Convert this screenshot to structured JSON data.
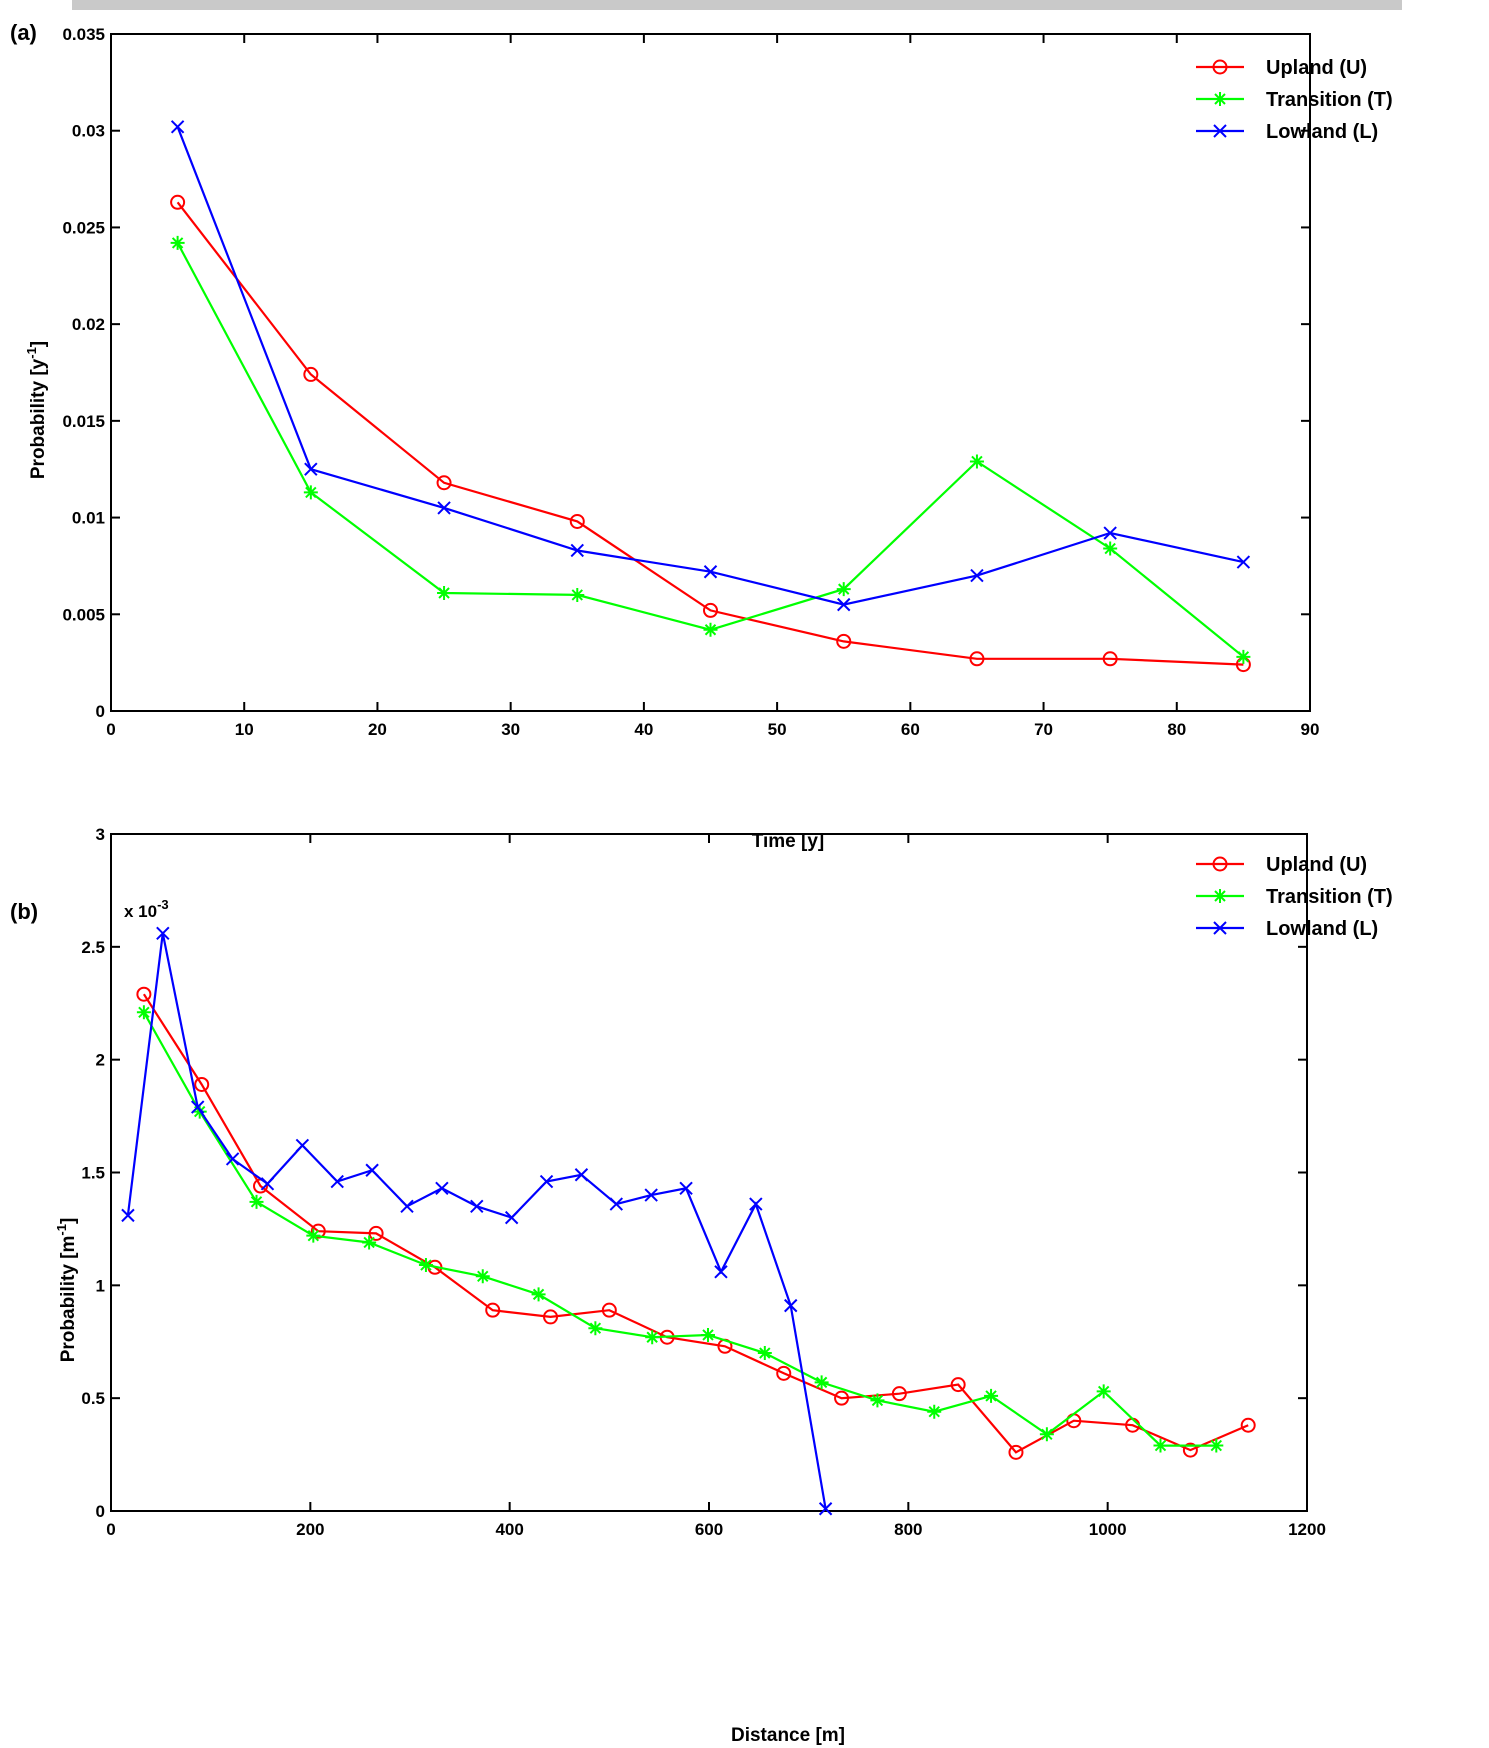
{
  "chart_data": [
    {
      "type": "line",
      "panel_label": "(a)",
      "xlabel": "Time [y]",
      "ylabel_main": "Probability [y",
      "ylabel_sup": "-1",
      "ylabel_close": "]",
      "xlim": [
        0,
        90
      ],
      "ylim": [
        0,
        0.035
      ],
      "xticks": [
        0,
        10,
        20,
        30,
        40,
        50,
        60,
        70,
        80,
        90
      ],
      "yticks": [
        0,
        0.005,
        0.01,
        0.015,
        0.02,
        0.025,
        0.03,
        0.035
      ],
      "ytick_labels": [
        "0",
        "0.005",
        "0.01",
        "0.015",
        "0.02",
        "0.025",
        "0.03",
        "0.035"
      ],
      "scale_note": "",
      "grid": false,
      "legend_position": "top-right",
      "series": [
        {
          "name": "Upland (U)",
          "color": "#ff0000",
          "marker": "circle",
          "x": [
            5,
            15,
            25,
            35,
            45,
            55,
            65,
            75,
            85
          ],
          "y": [
            0.0263,
            0.0174,
            0.0118,
            0.0098,
            0.0052,
            0.0036,
            0.0027,
            0.0027,
            0.0024
          ]
        },
        {
          "name": "Transition (T)",
          "color": "#00ff00",
          "marker": "star",
          "x": [
            5,
            15,
            25,
            35,
            45,
            55,
            65,
            75,
            85
          ],
          "y": [
            0.0242,
            0.0113,
            0.0061,
            0.006,
            0.0042,
            0.0063,
            0.0129,
            0.0084,
            0.0028
          ]
        },
        {
          "name": "Lowland (L)",
          "color": "#0000ff",
          "marker": "x",
          "x": [
            5,
            15,
            25,
            35,
            45,
            55,
            65,
            75,
            85
          ],
          "y": [
            0.0302,
            0.0125,
            0.0105,
            0.0083,
            0.0072,
            0.0055,
            0.007,
            0.0092,
            0.0077
          ]
        }
      ]
    },
    {
      "type": "line",
      "panel_label": "(b)",
      "xlabel": "Distance [m]",
      "ylabel_main": "Probability [m",
      "ylabel_sup": "-1",
      "ylabel_close": "]",
      "xlim": [
        0,
        1200
      ],
      "ylim": [
        0,
        3
      ],
      "xticks": [
        0,
        200,
        400,
        600,
        800,
        1000,
        1200
      ],
      "yticks": [
        0,
        0.5,
        1,
        1.5,
        2,
        2.5,
        3
      ],
      "ytick_labels": [
        "0",
        "0.5",
        "1",
        "1.5",
        "2",
        "2.5",
        "3"
      ],
      "scale_note": "x 10",
      "scale_note_sup": "-3",
      "grid": false,
      "legend_position": "top-right",
      "series": [
        {
          "name": "Upland (U)",
          "color": "#ff0000",
          "marker": "circle",
          "x": [
            33,
            91,
            150,
            208,
            266,
            325,
            383,
            441,
            500,
            558,
            616,
            675,
            733,
            791,
            850,
            908,
            966,
            1025,
            1083,
            1141
          ],
          "y": [
            2.29,
            1.89,
            1.44,
            1.24,
            1.23,
            1.08,
            0.89,
            0.86,
            0.89,
            0.77,
            0.73,
            0.61,
            0.5,
            0.52,
            0.56,
            0.26,
            0.4,
            0.38,
            0.27,
            0.38
          ]
        },
        {
          "name": "Transition (T)",
          "color": "#00ff00",
          "marker": "star",
          "x": [
            33,
            89,
            146,
            203,
            259,
            316,
            373,
            429,
            486,
            543,
            599,
            656,
            713,
            769,
            826,
            883,
            939,
            996,
            1053,
            1109
          ],
          "y": [
            2.21,
            1.77,
            1.37,
            1.22,
            1.19,
            1.09,
            1.04,
            0.96,
            0.81,
            0.77,
            0.78,
            0.7,
            0.57,
            0.49,
            0.44,
            0.51,
            0.34,
            0.53,
            0.29,
            0.29
          ]
        },
        {
          "name": "Lowland (L)",
          "color": "#0000ff",
          "marker": "x",
          "x": [
            17,
            52,
            87,
            122,
            157,
            192,
            227,
            262,
            297,
            332,
            367,
            402,
            437,
            472,
            507,
            542,
            577,
            612,
            647,
            682,
            717
          ],
          "y": [
            1.31,
            2.56,
            1.79,
            1.56,
            1.45,
            1.62,
            1.46,
            1.51,
            1.35,
            1.43,
            1.35,
            1.3,
            1.46,
            1.49,
            1.36,
            1.4,
            1.43,
            1.06,
            1.36,
            0.91,
            0.01
          ]
        }
      ]
    }
  ]
}
